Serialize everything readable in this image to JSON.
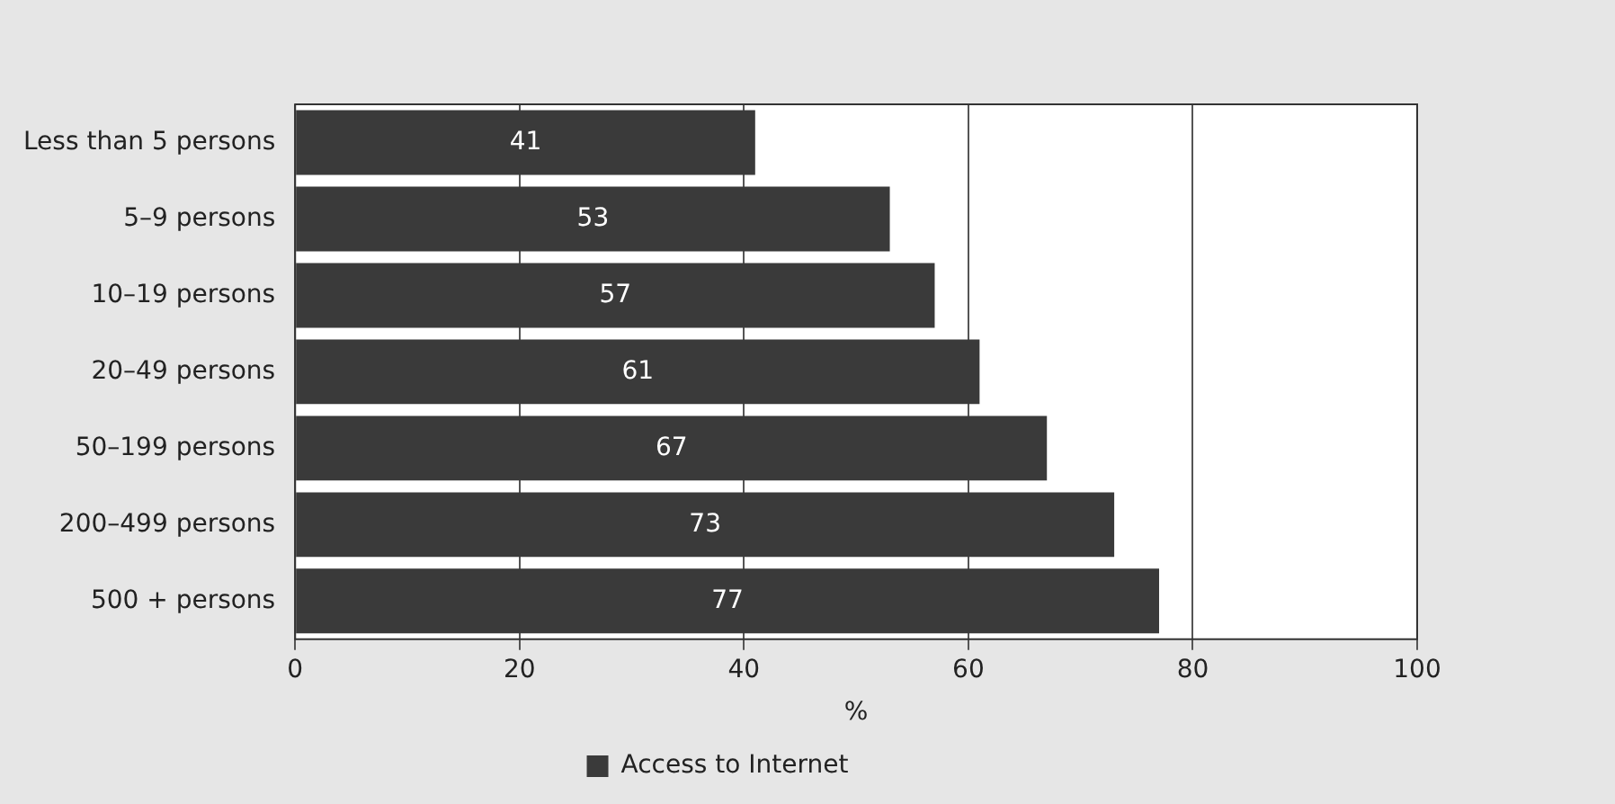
{
  "chart_data": {
    "type": "bar",
    "orientation": "horizontal",
    "categories": [
      "Less than 5 persons",
      "5–9 persons",
      "10–19 persons",
      "20–49 persons",
      "50–199 persons",
      "200–499 persons",
      "500 + persons"
    ],
    "series": [
      {
        "name": "Access to Internet",
        "color": "#3a3a3a",
        "values": [
          41,
          53,
          57,
          61,
          67,
          73,
          77
        ]
      }
    ],
    "xlabel": "%",
    "xlim": [
      0,
      100
    ],
    "xticks": [
      0,
      20,
      40,
      60,
      80,
      100
    ],
    "grid": "x",
    "legend": "bottom",
    "data_labels": true
  }
}
